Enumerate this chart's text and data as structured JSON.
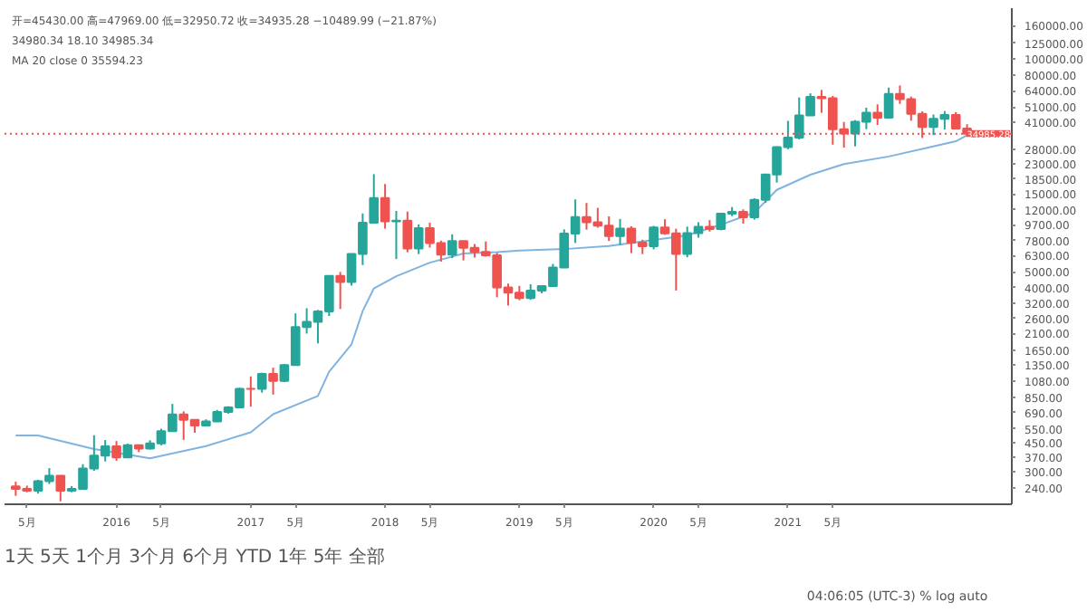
{
  "chart_data": {
    "type": "candlestick",
    "log": "y",
    "grid": false,
    "annotations": [
      "开=45430.00 高=47969.00 低=32950.72 收=34935.28 −10489.99 (−21.87%)",
      "34980.34  18.10  34985.34",
      "MA 20 close 0  35594.23",
      "1天  5天  1个月  3个月  6个月  YTD  1年  5年  全部",
      "04:06:05 (UTC-3)   %   log   auto"
    ],
    "x": [
      "2015-04",
      "2015-05",
      "2015-06",
      "2015-07",
      "2015-08",
      "2015-09",
      "2015-10",
      "2015-11",
      "2015-12",
      "2016-01",
      "2016-02",
      "2016-03",
      "2016-04",
      "2016-05",
      "2016-06",
      "2016-07",
      "2016-08",
      "2016-09",
      "2016-10",
      "2016-11",
      "2016-12",
      "2017-01",
      "2017-02",
      "2017-03",
      "2017-04",
      "2017-05",
      "2017-06",
      "2017-07",
      "2017-08",
      "2017-09",
      "2017-10",
      "2017-11",
      "2017-12",
      "2018-01",
      "2018-02",
      "2018-03",
      "2018-04",
      "2018-05",
      "2018-06",
      "2018-07",
      "2018-08",
      "2018-09",
      "2018-10",
      "2018-11",
      "2018-12",
      "2019-01",
      "2019-02",
      "2019-03",
      "2019-04",
      "2019-05",
      "2019-06",
      "2019-07",
      "2019-08",
      "2019-09",
      "2019-10",
      "2019-11",
      "2019-12",
      "2020-01",
      "2020-02",
      "2020-03",
      "2020-04",
      "2020-05",
      "2020-06",
      "2020-07",
      "2020-08",
      "2020-09",
      "2020-10",
      "2020-11",
      "2020-12",
      "2021-01",
      "2021-02",
      "2021-03",
      "2021-04",
      "2021-05",
      "2021-06",
      "2021-07",
      "2021-08",
      "2021-09",
      "2021-10",
      "2021-11",
      "2021-12",
      "2022-01",
      "2022-02",
      "2022-03",
      "2022-04",
      "2022-05"
    ],
    "ohlc": [
      [
        244,
        261,
        214,
        236
      ],
      [
        236,
        247,
        225,
        230
      ],
      [
        230,
        268,
        221,
        263
      ],
      [
        263,
        316,
        253,
        284
      ],
      [
        284,
        286,
        198,
        230
      ],
      [
        230,
        245,
        225,
        236
      ],
      [
        236,
        334,
        235,
        314
      ],
      [
        314,
        502,
        304,
        377
      ],
      [
        377,
        469,
        347,
        430
      ],
      [
        430,
        463,
        350,
        368
      ],
      [
        368,
        446,
        365,
        437
      ],
      [
        437,
        440,
        396,
        416
      ],
      [
        416,
        468,
        411,
        448
      ],
      [
        448,
        550,
        436,
        531
      ],
      [
        531,
        780,
        530,
        673
      ],
      [
        673,
        703,
        470,
        624
      ],
      [
        624,
        628,
        520,
        575
      ],
      [
        575,
        628,
        570,
        609
      ],
      [
        609,
        717,
        605,
        698
      ],
      [
        698,
        755,
        680,
        742
      ],
      [
        742,
        980,
        734,
        966
      ],
      [
        966,
        1150,
        751,
        965
      ],
      [
        965,
        1210,
        915,
        1190
      ],
      [
        1190,
        1300,
        890,
        1080
      ],
      [
        1080,
        1370,
        1060,
        1350
      ],
      [
        1350,
        2790,
        1350,
        2300
      ],
      [
        2300,
        3000,
        2100,
        2480
      ],
      [
        2480,
        2930,
        1830,
        2870
      ],
      [
        2870,
        4750,
        2690,
        4730
      ],
      [
        4730,
        5000,
        2970,
        4340
      ],
      [
        4340,
        6470,
        4130,
        6450
      ],
      [
        6450,
        11400,
        5510,
        10000
      ],
      [
        10000,
        19800,
        9900,
        14150
      ],
      [
        14150,
        17250,
        9200,
        10200
      ],
      [
        10200,
        11800,
        6000,
        10300
      ],
      [
        10300,
        11700,
        6600,
        6950
      ],
      [
        6950,
        9750,
        6430,
        9250
      ],
      [
        9250,
        10000,
        7050,
        7500
      ],
      [
        7500,
        7770,
        5780,
        6390
      ],
      [
        6390,
        8490,
        6070,
        7730
      ],
      [
        7730,
        7750,
        5880,
        7020
      ],
      [
        7020,
        7410,
        6120,
        6630
      ],
      [
        6630,
        7680,
        6200,
        6320
      ],
      [
        6320,
        6550,
        3500,
        4020
      ],
      [
        4020,
        4250,
        3120,
        3740
      ],
      [
        3740,
        4110,
        3360,
        3460
      ],
      [
        3460,
        4200,
        3380,
        3850
      ],
      [
        3850,
        4100,
        3700,
        4100
      ],
      [
        4100,
        5600,
        4070,
        5320
      ],
      [
        5320,
        9100,
        5320,
        8570
      ],
      [
        8570,
        13880,
        7520,
        10820
      ],
      [
        10820,
        13200,
        9070,
        10080
      ],
      [
        10080,
        12330,
        9320,
        9600
      ],
      [
        9600,
        10940,
        7730,
        8300
      ],
      [
        8300,
        10540,
        7300,
        9200
      ],
      [
        9200,
        9510,
        6520,
        7560
      ],
      [
        7560,
        7870,
        6430,
        7190
      ],
      [
        7190,
        9570,
        6870,
        9350
      ],
      [
        9350,
        10500,
        8440,
        8600
      ],
      [
        8600,
        9190,
        3850,
        6440
      ],
      [
        6440,
        9460,
        6150,
        8630
      ],
      [
        8630,
        10070,
        8100,
        9450
      ],
      [
        9450,
        10380,
        8830,
        9140
      ],
      [
        9140,
        11440,
        8990,
        11350
      ],
      [
        11350,
        12470,
        10960,
        11660
      ],
      [
        11660,
        12070,
        9880,
        10780
      ],
      [
        10780,
        14100,
        10440,
        13800
      ],
      [
        13800,
        19860,
        13220,
        19700
      ],
      [
        19700,
        29300,
        17600,
        28990
      ],
      [
        28990,
        41950,
        28130,
        33140
      ],
      [
        33140,
        58350,
        32300,
        45240
      ],
      [
        45240,
        61780,
        45000,
        58800
      ],
      [
        58800,
        64850,
        47000,
        57750
      ],
      [
        57750,
        59600,
        30000,
        37330
      ],
      [
        37330,
        41300,
        28800,
        35040
      ],
      [
        35040,
        42400,
        29300,
        41460
      ],
      [
        41460,
        50500,
        37330,
        47100
      ],
      [
        47100,
        52920,
        39600,
        43820
      ],
      [
        43820,
        67000,
        43290,
        61300
      ],
      [
        61300,
        69000,
        53260,
        57000
      ],
      [
        57000,
        59050,
        42000,
        46300
      ],
      [
        46300,
        47990,
        32950,
        38480
      ],
      [
        38480,
        45850,
        34320,
        43180
      ],
      [
        43180,
        48200,
        37180,
        45540
      ],
      [
        45540,
        47450,
        37500,
        37650
      ],
      [
        37650,
        40000,
        33720,
        34985
      ]
    ],
    "colors": [
      "#ef5350",
      "#ef5350",
      "#26a69a",
      "#26a69a",
      "#ef5350",
      "#26a69a",
      "#26a69a",
      "#26a69a",
      "#26a69a",
      "#ef5350",
      "#26a69a",
      "#ef5350",
      "#26a69a",
      "#26a69a",
      "#26a69a",
      "#ef5350",
      "#ef5350",
      "#26a69a",
      "#26a69a",
      "#26a69a",
      "#26a69a",
      "#ef5350",
      "#26a69a",
      "#ef5350",
      "#26a69a",
      "#26a69a",
      "#26a69a",
      "#26a69a",
      "#26a69a",
      "#ef5350",
      "#26a69a",
      "#26a69a",
      "#26a69a",
      "#ef5350",
      "#26a69a",
      "#ef5350",
      "#26a69a",
      "#ef5350",
      "#ef5350",
      "#26a69a",
      "#ef5350",
      "#ef5350",
      "#ef5350",
      "#ef5350",
      "#ef5350",
      "#ef5350",
      "#26a69a",
      "#26a69a",
      "#26a69a",
      "#26a69a",
      "#26a69a",
      "#ef5350",
      "#ef5350",
      "#ef5350",
      "#26a69a",
      "#ef5350",
      "#ef5350",
      "#26a69a",
      "#ef5350",
      "#ef5350",
      "#26a69a",
      "#26a69a",
      "#ef5350",
      "#26a69a",
      "#26a69a",
      "#ef5350",
      "#26a69a",
      "#26a69a",
      "#26a69a",
      "#26a69a",
      "#26a69a",
      "#26a69a",
      "#ef5350",
      "#ef5350",
      "#ef5350",
      "#26a69a",
      "#26a69a",
      "#ef5350",
      "#26a69a",
      "#ef5350",
      "#ef5350",
      "#ef5350",
      "#26a69a",
      "#26a69a",
      "#ef5350",
      "#ef5350"
    ],
    "series": [
      {
        "type": "line",
        "color": "#7fb3e0",
        "x": [
          "2015-04",
          "2015-06",
          "2015-11",
          "2016-04",
          "2016-09",
          "2017-01",
          "2017-03",
          "2017-07",
          "2017-08",
          "2017-10",
          "2017-11",
          "2017-12",
          "2018-02",
          "2018-05",
          "2018-08",
          "2018-11",
          "2019-01",
          "2019-05",
          "2019-09",
          "2020-04",
          "2020-07",
          "2020-10",
          "2020-12",
          "2021-03",
          "2021-06",
          "2021-10",
          "2022-01",
          "2022-04",
          "2022-05"
        ],
        "values": [
          500,
          500,
          413,
          363,
          431,
          523,
          675,
          872,
          1228,
          1802,
          2880,
          3967,
          4705,
          5700,
          6480,
          6610,
          6750,
          6900,
          7210,
          8370,
          9720,
          11530,
          15880,
          19650,
          22830,
          25400,
          28260,
          31450,
          34250
        ]
      }
    ],
    "ref_lines": [
      {
        "axis": "y",
        "value": 34985.28,
        "label": "34985.28",
        "color": "#ef5350",
        "line_style": "dotted"
      }
    ],
    "xlim": [
      "2015-03",
      "2022-09"
    ],
    "xticks": [
      {
        "value": "2015-05",
        "label": "5月"
      },
      {
        "value": "2016-01",
        "label": "2016"
      },
      {
        "value": "2016-05",
        "label": "5月"
      },
      {
        "value": "2017-01",
        "label": "2017"
      },
      {
        "value": "2017-05",
        "label": "5月"
      },
      {
        "value": "2018-01",
        "label": "2018"
      },
      {
        "value": "2018-05",
        "label": "5月"
      },
      {
        "value": "2019-01",
        "label": "2019"
      },
      {
        "value": "2019-05",
        "label": "5月"
      },
      {
        "value": "2020-01",
        "label": "2020"
      },
      {
        "value": "2020-05",
        "label": "5月"
      },
      {
        "value": "2021-01",
        "label": "2021"
      },
      {
        "value": "2021-05",
        "label": "5月"
      }
    ],
    "ylim": [
      190,
      205000
    ],
    "yticks": [
      {
        "value": 160000,
        "label": "160000.00"
      },
      {
        "value": 125000,
        "label": "125000.00"
      },
      {
        "value": 100000,
        "label": "100000.00"
      },
      {
        "value": 80000,
        "label": "80000.00"
      },
      {
        "value": 64000,
        "label": "64000.00"
      },
      {
        "value": 51000,
        "label": "51000.00"
      },
      {
        "value": 41000,
        "label": "41000.00"
      },
      {
        "value": 28000,
        "label": "28000.00"
      },
      {
        "value": 23000,
        "label": "23000.00"
      },
      {
        "value": 18500,
        "label": "18500.00"
      },
      {
        "value": 15000,
        "label": "15000.00"
      },
      {
        "value": 12000,
        "label": "12000.00"
      },
      {
        "value": 9700,
        "label": "9700.00"
      },
      {
        "value": 7800,
        "label": "7800.00"
      },
      {
        "value": 6300,
        "label": "6300.00"
      },
      {
        "value": 5000,
        "label": "5000.00"
      },
      {
        "value": 4000,
        "label": "4000.00"
      },
      {
        "value": 3200,
        "label": "3200.00"
      },
      {
        "value": 2600,
        "label": "2600.00"
      },
      {
        "value": 2100,
        "label": "2100.00"
      },
      {
        "value": 1650,
        "label": "1650.00"
      },
      {
        "value": 1350,
        "label": "1350.00"
      },
      {
        "value": 1080,
        "label": "1080.00"
      },
      {
        "value": 850,
        "label": "850.00"
      },
      {
        "value": 690,
        "label": "690.00"
      },
      {
        "value": 550,
        "label": "550.00"
      },
      {
        "value": 450,
        "label": "450.00"
      },
      {
        "value": 370,
        "label": "370.00"
      },
      {
        "value": 300,
        "label": "300.00"
      },
      {
        "value": 240,
        "label": "240.00"
      }
    ]
  }
}
